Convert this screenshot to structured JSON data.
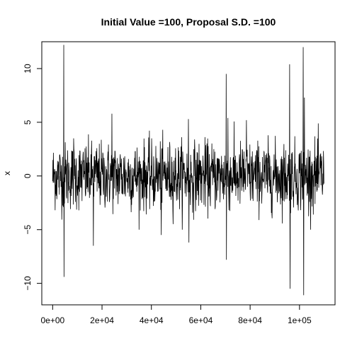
{
  "chart_data": {
    "type": "line",
    "title": "Initial Value =100, Proposal S.D. =100",
    "xlabel": "",
    "ylabel": "x",
    "xlim": [
      -4400,
      114400
    ],
    "ylim": [
      -12,
      12.5
    ],
    "x_ticks": [
      0,
      20000,
      40000,
      60000,
      80000,
      100000
    ],
    "x_tick_labels": [
      "0e+00",
      "2e+04",
      "4e+04",
      "6e+04",
      "8e+04",
      "1e+05"
    ],
    "y_ticks": [
      -10,
      -5,
      0,
      5,
      10
    ],
    "y_tick_labels": [
      "−10",
      "−5",
      "0",
      "5",
      "10"
    ],
    "grid": false,
    "legend": "none",
    "series": [
      {
        "n_iterations": 110000,
        "trace_core_sd": 1.55,
        "color": "#000000",
        "spikes": [
          {
            "x": 4500,
            "y": 12.2
          },
          {
            "x": 4600,
            "y": -9.4
          },
          {
            "x": 8500,
            "y": 3.5
          },
          {
            "x": 16500,
            "y": -6.5
          },
          {
            "x": 24000,
            "y": 5.8
          },
          {
            "x": 44000,
            "y": -5.5
          },
          {
            "x": 55000,
            "y": 5.3
          },
          {
            "x": 55200,
            "y": -6.2
          },
          {
            "x": 70300,
            "y": 9.5
          },
          {
            "x": 70400,
            "y": -7.8
          },
          {
            "x": 71000,
            "y": 5.4
          },
          {
            "x": 78500,
            "y": 5.2
          },
          {
            "x": 96000,
            "y": 10.4
          },
          {
            "x": 96200,
            "y": -10.5
          },
          {
            "x": 101500,
            "y": 12.0
          },
          {
            "x": 101700,
            "y": -11.1
          },
          {
            "x": 102000,
            "y": 7.3
          }
        ]
      }
    ]
  }
}
